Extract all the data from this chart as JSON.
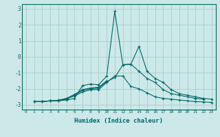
{
  "title": "",
  "xlabel": "Humidex (Indice chaleur)",
  "ylabel": "",
  "background_color": "#cce8e8",
  "grid_color": "#aacccc",
  "line_color": "#006666",
  "spine_color": "#006666",
  "xlim": [
    -0.5,
    23.5
  ],
  "ylim": [
    -3.3,
    3.3
  ],
  "xticks": [
    0,
    1,
    2,
    3,
    4,
    5,
    6,
    7,
    8,
    9,
    10,
    11,
    12,
    13,
    14,
    15,
    16,
    17,
    18,
    19,
    20,
    21,
    22,
    23
  ],
  "yticks": [
    -3,
    -2,
    -1,
    0,
    1,
    2,
    3
  ],
  "series": [
    [
      1,
      -2.8,
      2,
      -2.8,
      3,
      -2.75,
      4,
      -2.75,
      5,
      -2.7,
      6,
      -2.6,
      7,
      -1.8,
      8,
      -1.7,
      9,
      -1.75,
      10,
      -1.2,
      11,
      2.85,
      12,
      -0.5,
      13,
      -0.45,
      14,
      0.65,
      15,
      -0.9,
      16,
      -1.35,
      17,
      -1.6,
      18,
      -2.05,
      19,
      -2.3,
      20,
      -2.4,
      21,
      -2.5,
      22,
      -2.6,
      23,
      -2.65
    ],
    [
      1,
      -2.8,
      2,
      -2.8,
      3,
      -2.75,
      4,
      -2.75,
      5,
      -2.65,
      6,
      -2.4,
      7,
      -2.1,
      8,
      -2.0,
      9,
      -1.95,
      10,
      -1.55,
      11,
      -1.3,
      12,
      -0.5,
      13,
      -0.45,
      14,
      -0.9,
      15,
      -1.35,
      16,
      -1.6,
      17,
      -2.05,
      18,
      -2.3,
      19,
      -2.4,
      20,
      -2.5,
      21,
      -2.6,
      22,
      -2.65
    ],
    [
      1,
      -2.8,
      2,
      -2.8,
      3,
      -2.75,
      4,
      -2.72,
      5,
      -2.6,
      6,
      -2.35,
      7,
      -2.05,
      8,
      -1.95,
      9,
      -1.9,
      10,
      -1.5
    ],
    [
      1,
      -2.8,
      2,
      -2.8,
      3,
      -2.75,
      4,
      -2.72,
      5,
      -2.6,
      6,
      -2.45,
      7,
      -2.2,
      8,
      -2.05,
      9,
      -2.05,
      10,
      -1.6,
      11,
      -1.2,
      12,
      -1.2,
      13,
      -1.85,
      14,
      -2.0,
      15,
      -2.25,
      16,
      -2.5,
      17,
      -2.6,
      18,
      -2.65,
      19,
      -2.7,
      20,
      -2.75,
      21,
      -2.8,
      22,
      -2.82,
      23,
      -2.85
    ]
  ]
}
